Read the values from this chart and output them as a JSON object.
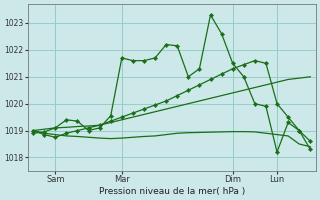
{
  "background_color": "#cce8e8",
  "grid_color": "#99cccc",
  "line_color": "#1a6e1a",
  "xlabel": "Pression niveau de la mer( hPa )",
  "ylim": [
    1017.5,
    1023.7
  ],
  "yticks": [
    1018,
    1019,
    1020,
    1021,
    1022,
    1023
  ],
  "xtick_labels": [
    "Sam",
    "Mar",
    "Dim",
    "Lun"
  ],
  "xtick_positions": [
    2,
    8,
    18,
    22
  ],
  "total_points": 26,
  "series": [
    {
      "y": [
        1018.9,
        1018.95,
        1019.1,
        1019.4,
        1019.35,
        1019.0,
        1019.1,
        1019.55,
        1021.7,
        1021.6,
        1021.6,
        1021.7,
        1022.2,
        1022.15,
        1021.0,
        1021.3,
        1023.3,
        1022.6,
        1021.5,
        1021.0,
        1020.0,
        1019.9,
        1018.2,
        1019.3,
        1019.0,
        1018.3
      ],
      "marker": true,
      "linestyle": "-"
    },
    {
      "y": [
        1019.0,
        1018.9,
        1018.85,
        1018.8,
        1018.78,
        1018.75,
        1018.72,
        1018.7,
        1018.72,
        1018.75,
        1018.78,
        1018.8,
        1018.85,
        1018.9,
        1018.92,
        1018.93,
        1018.94,
        1018.95,
        1018.96,
        1018.96,
        1018.95,
        1018.9,
        1018.85,
        1018.8,
        1018.5,
        1018.4
      ],
      "marker": false,
      "linestyle": "-"
    },
    {
      "y": [
        1019.0,
        1019.05,
        1019.1,
        1019.12,
        1019.15,
        1019.17,
        1019.2,
        1019.3,
        1019.4,
        1019.5,
        1019.6,
        1019.7,
        1019.8,
        1019.9,
        1020.0,
        1020.1,
        1020.2,
        1020.3,
        1020.4,
        1020.5,
        1020.6,
        1020.7,
        1020.8,
        1020.9,
        1020.95,
        1021.0
      ],
      "marker": false,
      "linestyle": "-"
    },
    {
      "y": [
        1019.0,
        1018.85,
        1018.75,
        1018.9,
        1019.0,
        1019.1,
        1019.2,
        1019.35,
        1019.5,
        1019.65,
        1019.8,
        1019.95,
        1020.1,
        1020.3,
        1020.5,
        1020.7,
        1020.9,
        1021.1,
        1021.3,
        1021.45,
        1021.6,
        1021.5,
        1020.0,
        1019.5,
        1019.0,
        1018.6
      ],
      "marker": true,
      "linestyle": "-"
    }
  ]
}
